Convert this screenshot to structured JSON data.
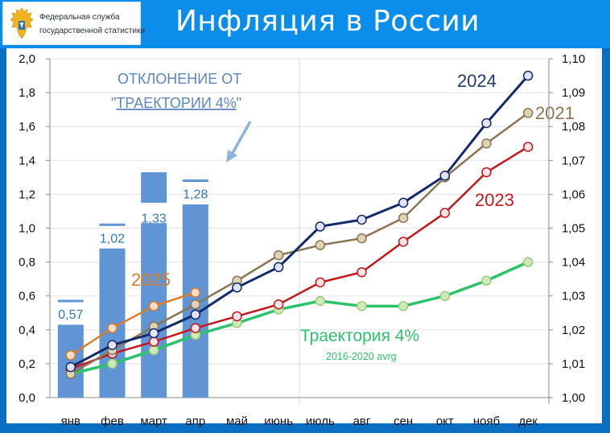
{
  "header": {
    "org_line1": "Федеральная служба",
    "org_line2": "государственной статистики",
    "title": "Инфляция в России",
    "emblem_icon": "double-headed-eagle-emblem"
  },
  "colors": {
    "header_blue": "#0b8deb",
    "frame_blue": "#0a6fc0",
    "bar": "#5f95d4",
    "series_2025": "#e07b28",
    "series_2024": "#142a6b",
    "series_2021": "#8b7553",
    "series_2023": "#c4161c",
    "series_4pct": "#2cc36b"
  },
  "annotations": {
    "deviation_line1": "ОТКЛОНЕНИЕ ОТ",
    "deviation_line2_prefix": "\"",
    "deviation_line2_underlined": "ТРАЕКТОРИИ 4%",
    "deviation_line2_suffix": "\"",
    "label_2025": "2025",
    "label_2024": "2024",
    "label_2021": "2021",
    "label_2023": "2023",
    "label_4pct": "Траектория 4%",
    "label_4pct_sub": "2016-2020 avrg",
    "bar_labels": [
      "0,57",
      "1,02",
      "1,33",
      "1,28"
    ]
  },
  "chart_data": {
    "type": "line",
    "title": "Инфляция в России",
    "xlabel": "",
    "ylabel": "",
    "categories": [
      "янв",
      "фев",
      "март",
      "апр",
      "май",
      "июнь",
      "июль",
      "авг",
      "сен",
      "окт",
      "нояб",
      "дек"
    ],
    "y_left": {
      "ticks": [
        "0,0",
        "0,2",
        "0,4",
        "0,6",
        "0,8",
        "1,0",
        "1,2",
        "1,4",
        "1,6",
        "1,8",
        "2,0"
      ],
      "range": [
        0,
        2.0
      ]
    },
    "y_right": {
      "ticks": [
        "1,00",
        "1,01",
        "1,02",
        "1,03",
        "1,04",
        "1,05",
        "1,06",
        "1,07",
        "1,08",
        "1,09",
        "1,10"
      ],
      "range": [
        1.0,
        1.1
      ]
    },
    "grid": true,
    "series": [
      {
        "name": "2025",
        "values": [
          0.25,
          0.41,
          0.54,
          0.62,
          null,
          null,
          null,
          null,
          null,
          null,
          null,
          null
        ]
      },
      {
        "name": "2024",
        "values": [
          0.18,
          0.31,
          0.38,
          0.49,
          0.65,
          0.77,
          1.01,
          1.05,
          1.15,
          1.31,
          1.62,
          1.9
        ]
      },
      {
        "name": "2021",
        "values": [
          0.14,
          0.28,
          0.42,
          0.55,
          0.69,
          0.84,
          0.9,
          0.94,
          1.06,
          1.3,
          1.5,
          1.68
        ]
      },
      {
        "name": "2023",
        "values": [
          0.17,
          0.26,
          0.33,
          0.41,
          0.48,
          0.55,
          0.68,
          0.74,
          0.92,
          1.09,
          1.33,
          1.48
        ]
      },
      {
        "name": "Траектория 4% (2016-2020 avrg)",
        "values": [
          0.14,
          0.2,
          0.28,
          0.37,
          0.44,
          0.52,
          0.57,
          0.54,
          0.54,
          0.6,
          0.69,
          0.8
        ]
      }
    ],
    "bars": {
      "name": "Отклонение от траектории 4%",
      "categories": [
        "янв",
        "фев",
        "март",
        "апр"
      ],
      "bar_heights": [
        0.43,
        0.88,
        1.33,
        1.14
      ],
      "deviation_values": [
        0.57,
        1.02,
        1.33,
        1.28
      ]
    }
  }
}
